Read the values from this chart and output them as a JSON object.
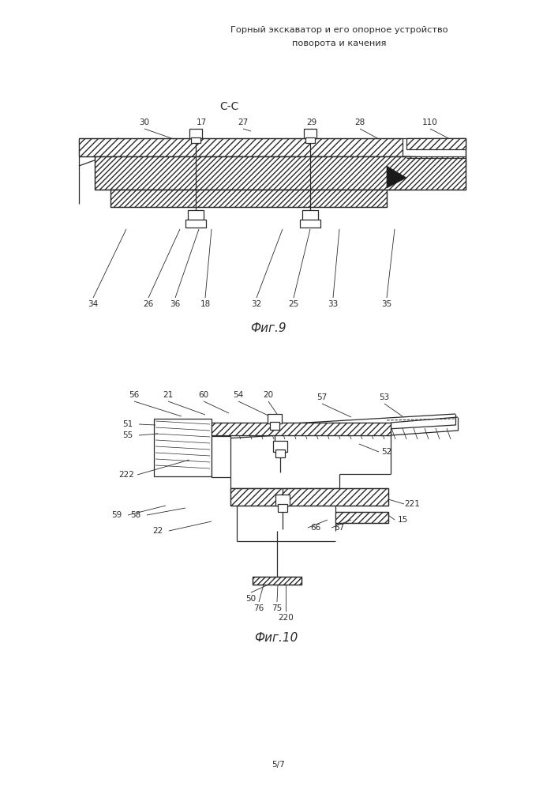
{
  "title_line1": "Горный экскаватор и его опорное устройство",
  "title_line2": "поворота и качения",
  "fig9_label": "Фиг.9",
  "fig10_label": "Фиг.10",
  "section_label": "С-С",
  "page_label": "5/7",
  "lc": "#2a2a2a",
  "bg": "#ffffff"
}
